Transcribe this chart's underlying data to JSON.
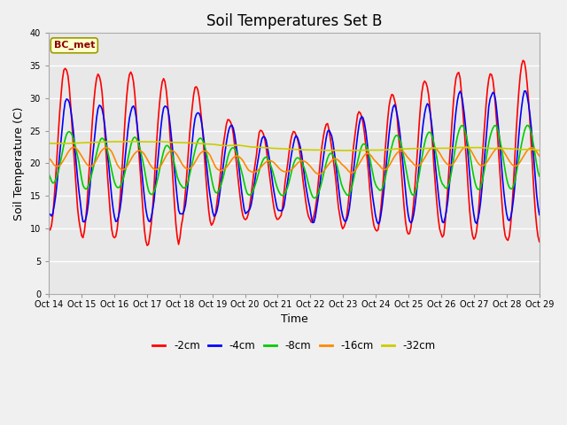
{
  "title": "Soil Temperatures Set B",
  "xlabel": "Time",
  "ylabel": "Soil Temperature (C)",
  "ylim": [
    0,
    40
  ],
  "yticks": [
    0,
    5,
    10,
    15,
    20,
    25,
    30,
    35,
    40
  ],
  "x_labels": [
    "Oct 14",
    "Oct 15",
    "Oct 16",
    "Oct 17",
    "Oct 18",
    "Oct 19",
    "Oct 20",
    "Oct 21",
    "Oct 22",
    "Oct 23",
    "Oct 24",
    "Oct 25",
    "Oct 26",
    "Oct 27",
    "Oct 28",
    "Oct 29"
  ],
  "legend_labels": [
    "-2cm",
    "-4cm",
    "-8cm",
    "-16cm",
    "-32cm"
  ],
  "legend_colors": [
    "#ff0000",
    "#0000ff",
    "#00cc00",
    "#ff8800",
    "#cccc00"
  ],
  "annotation_text": "BC_met",
  "annotation_bg": "#ffffcc",
  "annotation_border": "#999900",
  "plot_bg": "#e8e8e8",
  "fig_bg": "#f0f0f0",
  "grid_color": "#ffffff",
  "title_fontsize": 12,
  "axis_fontsize": 9,
  "tick_fontsize": 8
}
